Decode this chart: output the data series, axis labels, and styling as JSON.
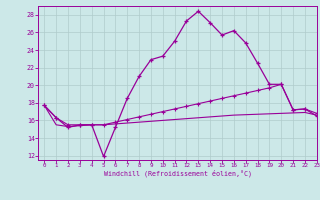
{
  "xlabel": "Windchill (Refroidissement éolien,°C)",
  "bg_color": "#cce8e8",
  "grid_color": "#b0cccc",
  "line_color": "#990099",
  "x_ticks": [
    0,
    1,
    2,
    3,
    4,
    5,
    6,
    7,
    8,
    9,
    10,
    11,
    12,
    13,
    14,
    15,
    16,
    17,
    18,
    19,
    20,
    21,
    22,
    23
  ],
  "ylim": [
    11.5,
    29
  ],
  "xlim": [
    -0.5,
    23
  ],
  "y_ticks": [
    12,
    14,
    16,
    18,
    20,
    22,
    24,
    26,
    28
  ],
  "series1_x": [
    0,
    1,
    2,
    3,
    4,
    5,
    6,
    7,
    8,
    9,
    10,
    11,
    12,
    13,
    14,
    15,
    16,
    17,
    18,
    19,
    20,
    21,
    22,
    23
  ],
  "series1_y": [
    17.7,
    16.3,
    15.2,
    15.5,
    15.5,
    11.9,
    15.2,
    18.5,
    21.0,
    22.9,
    23.3,
    25.0,
    27.3,
    28.4,
    27.1,
    25.7,
    26.2,
    24.8,
    22.5,
    20.1,
    20.1,
    17.2,
    17.3,
    16.5
  ],
  "series2_x": [
    0,
    1,
    2,
    3,
    4,
    5,
    6,
    7,
    8,
    9,
    10,
    11,
    12,
    13,
    14,
    15,
    16,
    17,
    18,
    19,
    20,
    21,
    22,
    23
  ],
  "series2_y": [
    17.7,
    16.3,
    15.5,
    15.5,
    15.5,
    15.5,
    15.8,
    16.1,
    16.4,
    16.7,
    17.0,
    17.3,
    17.6,
    17.9,
    18.2,
    18.5,
    18.8,
    19.1,
    19.4,
    19.7,
    20.1,
    17.2,
    17.3,
    16.8
  ],
  "series3_x": [
    0,
    1,
    2,
    3,
    4,
    5,
    6,
    7,
    8,
    9,
    10,
    11,
    12,
    13,
    14,
    15,
    16,
    17,
    18,
    19,
    20,
    21,
    22,
    23
  ],
  "series3_y": [
    17.7,
    15.5,
    15.3,
    15.4,
    15.5,
    15.5,
    15.6,
    15.7,
    15.8,
    15.9,
    16.0,
    16.1,
    16.2,
    16.3,
    16.4,
    16.5,
    16.6,
    16.65,
    16.7,
    16.75,
    16.8,
    16.85,
    16.9,
    16.6
  ]
}
